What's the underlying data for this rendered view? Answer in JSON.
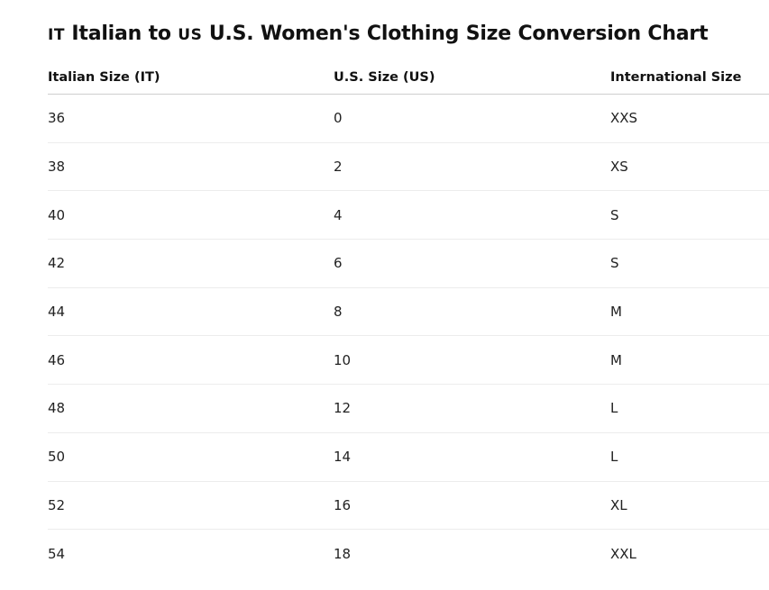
{
  "title": {
    "flag_left": "IT",
    "text_a": "Italian to",
    "flag_right": "US",
    "text_b": "U.S. Women's Clothing Size Conversion Chart"
  },
  "table": {
    "headers": [
      "Italian Size (IT)",
      "U.S. Size (US)",
      "International Size"
    ],
    "rows": [
      [
        "36",
        "0",
        "XXS"
      ],
      [
        "38",
        "2",
        "XS"
      ],
      [
        "40",
        "4",
        "S"
      ],
      [
        "42",
        "6",
        "S"
      ],
      [
        "44",
        "8",
        "M"
      ],
      [
        "46",
        "10",
        "M"
      ],
      [
        "48",
        "12",
        "L"
      ],
      [
        "50",
        "14",
        "L"
      ],
      [
        "52",
        "16",
        "XL"
      ],
      [
        "54",
        "18",
        "XXL"
      ]
    ]
  }
}
